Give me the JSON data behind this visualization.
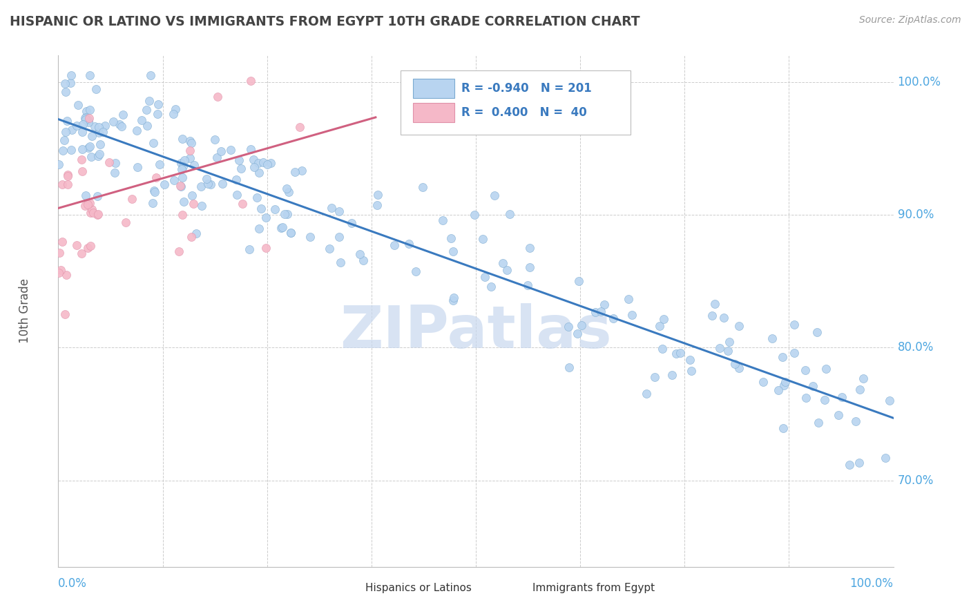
{
  "title": "HISPANIC OR LATINO VS IMMIGRANTS FROM EGYPT 10TH GRADE CORRELATION CHART",
  "source": "Source: ZipAtlas.com",
  "ylabel_label": "10th Grade",
  "series": [
    {
      "name": "Hispanics or Latinos",
      "R": -0.94,
      "N": 201,
      "color": "#b8d4f0",
      "line_color": "#3a7abf",
      "marker_edge": "#7aaad0"
    },
    {
      "name": "Immigrants from Egypt",
      "R": 0.4,
      "N": 40,
      "color": "#f5b8c8",
      "line_color": "#d06080",
      "marker_edge": "#e090a8"
    }
  ],
  "xlim": [
    0.0,
    1.0
  ],
  "ylim": [
    0.635,
    1.02
  ],
  "ytick_labels": [
    "70.0%",
    "80.0%",
    "90.0%",
    "100.0%"
  ],
  "ytick_values": [
    0.7,
    0.8,
    0.9,
    1.0
  ],
  "blue_intercept": 0.972,
  "blue_slope": -0.225,
  "pink_intercept": 0.905,
  "pink_slope": 0.18,
  "blue_noise": 0.022,
  "pink_noise": 0.028,
  "watermark_text": "ZIPatlas",
  "watermark_color": "#c8d8ee",
  "background_color": "#ffffff",
  "grid_color": "#cccccc",
  "title_color": "#444444",
  "axis_label_color": "#4da6e0",
  "legend_text_color": "#3a7abf"
}
